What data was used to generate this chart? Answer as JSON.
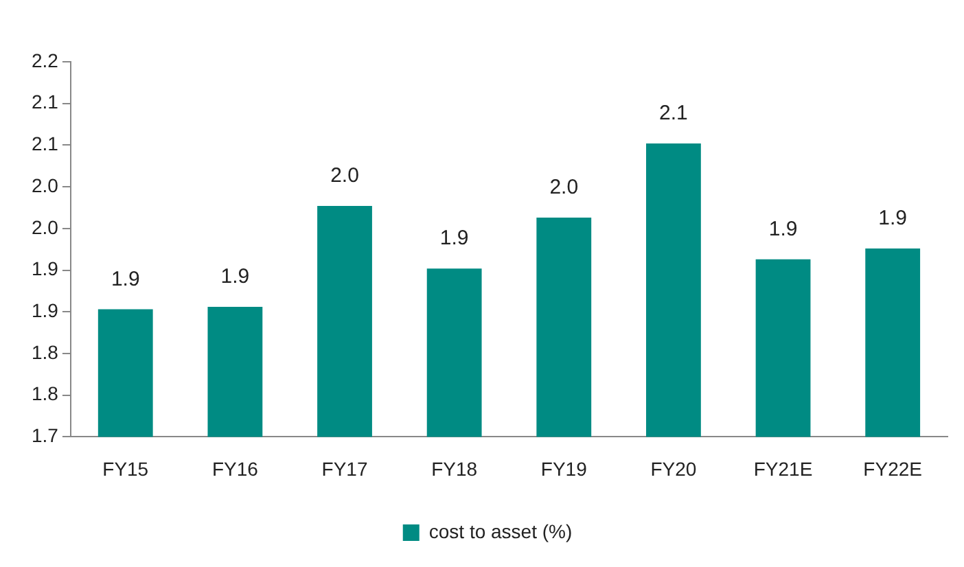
{
  "chart_data": {
    "type": "bar",
    "categories": [
      "FY15",
      "FY16",
      "FY17",
      "FY18",
      "FY19",
      "FY20",
      "FY21E",
      "FY22E"
    ],
    "series": [
      {
        "name": "cost to asset (%)",
        "color": "#008b83",
        "values": [
          1.853,
          1.856,
          1.977,
          1.902,
          1.963,
          2.052,
          1.913,
          1.926
        ],
        "value_labels": [
          "1.9",
          "1.9",
          "2.0",
          "1.9",
          "2.0",
          "2.1",
          "1.9",
          "1.9"
        ]
      }
    ],
    "ylim": [
      1.7,
      2.15
    ],
    "yticks": [
      {
        "value": 1.7,
        "label": "1.7"
      },
      {
        "value": 1.75,
        "label": "1.8"
      },
      {
        "value": 1.8,
        "label": "1.8"
      },
      {
        "value": 1.85,
        "label": "1.9"
      },
      {
        "value": 1.9,
        "label": "1.9"
      },
      {
        "value": 1.95,
        "label": "2.0"
      },
      {
        "value": 2.0,
        "label": "2.0"
      },
      {
        "value": 2.05,
        "label": "2.1"
      },
      {
        "value": 2.1,
        "label": "2.1"
      },
      {
        "value": 2.15,
        "label": "2.2"
      }
    ],
    "grid": false,
    "legend": "bottom"
  }
}
